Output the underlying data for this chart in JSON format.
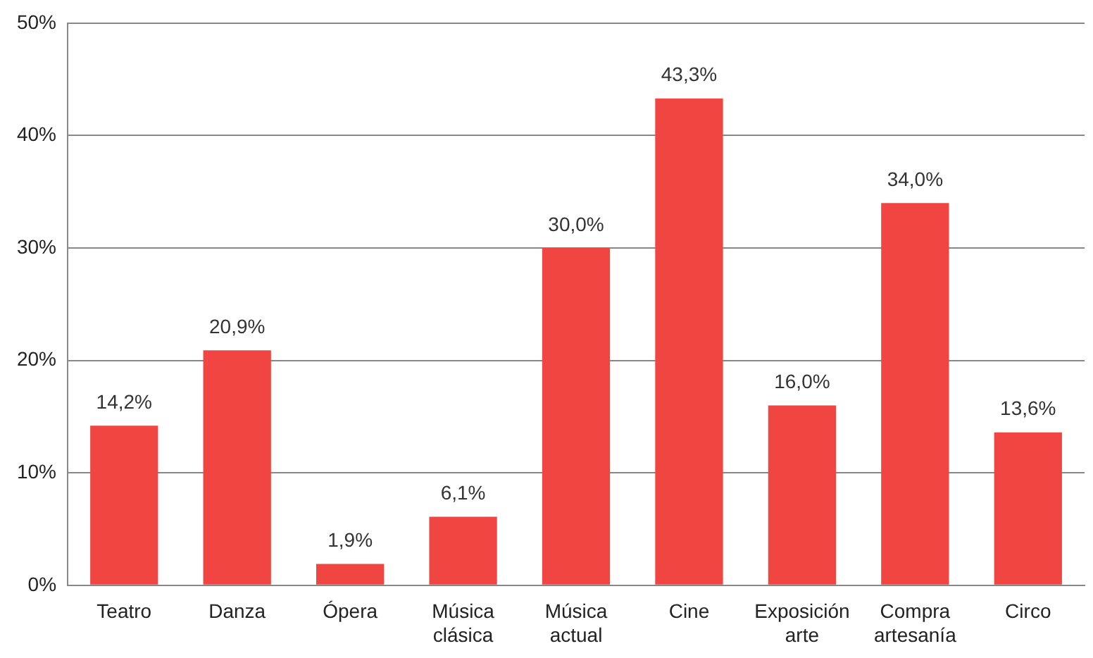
{
  "chart_data": {
    "type": "bar",
    "categories": [
      "Teatro",
      "Danza",
      "Ópera",
      "Música clásica",
      "Música actual",
      "Cine",
      "Exposición arte",
      "Compra artesanía",
      "Circo"
    ],
    "values": [
      14.2,
      20.9,
      1.9,
      6.1,
      30.0,
      43.3,
      16.0,
      34.0,
      13.6
    ],
    "value_labels": [
      "14,2%",
      "20,9%",
      "1,9%",
      "6,1%",
      "30,0%",
      "43,3%",
      "16,0%",
      "34,0%",
      "13,6%"
    ],
    "color": "#f04541",
    "ylim": [
      0,
      50
    ],
    "yticks": [
      {
        "value": 0,
        "label": "0%"
      },
      {
        "value": 10,
        "label": "10%"
      },
      {
        "value": 20,
        "label": "20%"
      },
      {
        "value": 30,
        "label": "30%"
      },
      {
        "value": 40,
        "label": "40%"
      },
      {
        "value": 50,
        "label": "50%"
      }
    ],
    "grid": "y",
    "legend": false
  }
}
